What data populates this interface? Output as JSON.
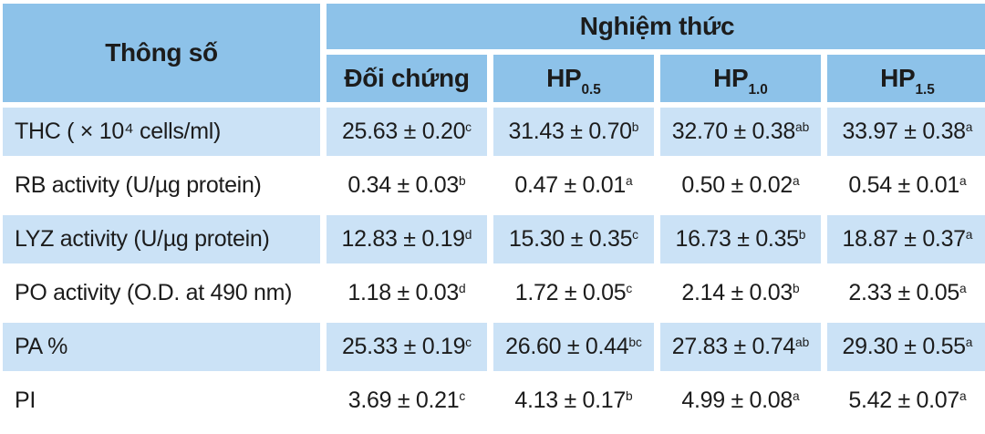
{
  "colors": {
    "header_bg": "#8dc2e9",
    "row_alt_bg": "#cbe2f6",
    "text": "#1c1c1c",
    "gap": "#ffffff"
  },
  "table": {
    "param_header": "Thông số",
    "group_header": "Nghiệm thức",
    "columns": [
      {
        "base": "Đối chứng",
        "sub": ""
      },
      {
        "base": "HP",
        "sub": "0.5"
      },
      {
        "base": "HP",
        "sub": "1.0"
      },
      {
        "base": "HP",
        "sub": "1.5"
      }
    ]
  },
  "chart_data": {
    "type": "table",
    "param_header": "Thông số",
    "group_header": "Nghiệm thức",
    "columns": [
      "Đối chứng",
      "HP 0.5",
      "HP 1.0",
      "HP 1.5"
    ],
    "value_format": "mean ± sd with significance letters as superscript",
    "rows": [
      {
        "parameter": "THC ( × 10⁴ cells/ml)",
        "values": [
          {
            "mean": 25.63,
            "sd": 0.2,
            "sig": "c"
          },
          {
            "mean": 31.43,
            "sd": 0.7,
            "sig": "b"
          },
          {
            "mean": 32.7,
            "sd": 0.38,
            "sig": "ab"
          },
          {
            "mean": 33.97,
            "sd": 0.38,
            "sig": "a"
          }
        ]
      },
      {
        "parameter": "RB activity (U/µg protein)",
        "values": [
          {
            "mean": 0.34,
            "sd": 0.03,
            "sig": "b"
          },
          {
            "mean": 0.47,
            "sd": 0.01,
            "sig": "a"
          },
          {
            "mean": 0.5,
            "sd": 0.02,
            "sig": "a"
          },
          {
            "mean": 0.54,
            "sd": 0.01,
            "sig": "a"
          }
        ]
      },
      {
        "parameter": "LYZ activity (U/µg protein)",
        "values": [
          {
            "mean": 12.83,
            "sd": 0.19,
            "sig": "d"
          },
          {
            "mean": 15.3,
            "sd": 0.35,
            "sig": "c"
          },
          {
            "mean": 16.73,
            "sd": 0.35,
            "sig": "b"
          },
          {
            "mean": 18.87,
            "sd": 0.37,
            "sig": "a"
          }
        ]
      },
      {
        "parameter": "PO activity (O.D. at 490 nm)",
        "values": [
          {
            "mean": 1.18,
            "sd": 0.03,
            "sig": "d"
          },
          {
            "mean": 1.72,
            "sd": 0.05,
            "sig": "c"
          },
          {
            "mean": 2.14,
            "sd": 0.03,
            "sig": "b"
          },
          {
            "mean": 2.33,
            "sd": 0.05,
            "sig": "a"
          }
        ]
      },
      {
        "parameter": "PA %",
        "values": [
          {
            "mean": 25.33,
            "sd": 0.19,
            "sig": "c"
          },
          {
            "mean": 26.6,
            "sd": 0.44,
            "sig": "bc"
          },
          {
            "mean": 27.83,
            "sd": 0.74,
            "sig": "ab"
          },
          {
            "mean": 29.3,
            "sd": 0.55,
            "sig": "a"
          }
        ]
      },
      {
        "parameter": "PI",
        "values": [
          {
            "mean": 3.69,
            "sd": 0.21,
            "sig": "c"
          },
          {
            "mean": 4.13,
            "sd": 0.17,
            "sig": "b"
          },
          {
            "mean": 4.99,
            "sd": 0.08,
            "sig": "a"
          },
          {
            "mean": 5.42,
            "sd": 0.07,
            "sig": "a"
          }
        ]
      }
    ]
  }
}
